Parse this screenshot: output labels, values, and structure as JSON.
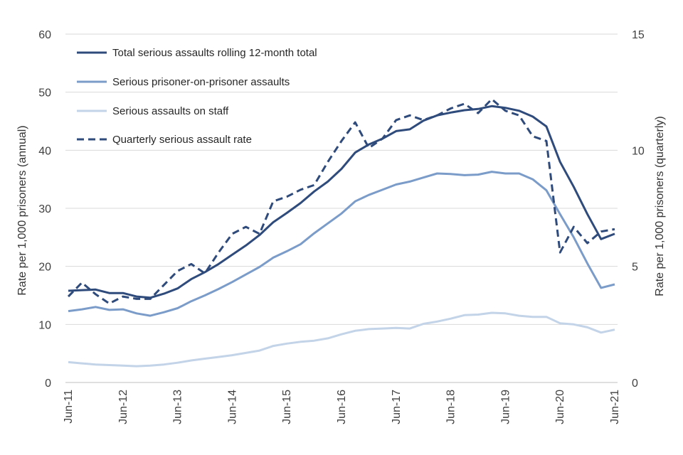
{
  "chart_data": {
    "type": "line",
    "ylabel_left": "Rate per 1,000 prisoners (annual)",
    "ylabel_right": "Rate per 1,000 prisoners (quarterly)",
    "ylim_left": [
      0,
      60
    ],
    "ylim_right": [
      0,
      15
    ],
    "yticks_left": [
      "0",
      "10",
      "20",
      "30",
      "40",
      "50",
      "60"
    ],
    "yticks_right": [
      "0",
      "5",
      "10",
      "15"
    ],
    "x": [
      "Jun-11",
      "Sep-11",
      "Dec-11",
      "Mar-12",
      "Jun-12",
      "Sep-12",
      "Dec-12",
      "Mar-13",
      "Jun-13",
      "Sep-13",
      "Dec-13",
      "Mar-14",
      "Jun-14",
      "Sep-14",
      "Dec-14",
      "Mar-15",
      "Jun-15",
      "Sep-15",
      "Dec-15",
      "Mar-16",
      "Jun-16",
      "Sep-16",
      "Dec-16",
      "Mar-17",
      "Jun-17",
      "Sep-17",
      "Dec-17",
      "Mar-18",
      "Jun-18",
      "Sep-18",
      "Dec-18",
      "Mar-19",
      "Jun-19",
      "Sep-19",
      "Dec-19",
      "Mar-20",
      "Jun-20",
      "Sep-20",
      "Dec-20",
      "Mar-21",
      "Jun-21"
    ],
    "xtick_labels": [
      "Jun-11",
      "Jun-12",
      "Jun-13",
      "Jun-14",
      "Jun-15",
      "Jun-16",
      "Jun-17",
      "Jun-18",
      "Jun-19",
      "Jun-20",
      "Jun-21"
    ],
    "grid": true,
    "legend_position": "top-left",
    "series": [
      {
        "name": "Total serious assaults rolling 12-month total",
        "axis": "left",
        "color": "#2f4b7c",
        "dash": false,
        "values": [
          15.8,
          15.9,
          16.0,
          15.4,
          15.4,
          14.8,
          14.6,
          15.3,
          16.2,
          17.8,
          19.0,
          20.4,
          22.0,
          23.6,
          25.4,
          27.6,
          29.2,
          30.9,
          32.9,
          34.6,
          36.8,
          39.6,
          41.0,
          42.0,
          43.3,
          43.6,
          45.1,
          46.0,
          46.5,
          46.9,
          47.1,
          47.6,
          47.3,
          46.8,
          45.8,
          44.1,
          38.0,
          33.7,
          29.0,
          24.7,
          25.6
        ]
      },
      {
        "name": "Serious prisoner-on-prisoner assaults",
        "axis": "left",
        "color": "#7b9cc9",
        "dash": false,
        "values": [
          12.3,
          12.6,
          13.0,
          12.5,
          12.6,
          11.9,
          11.5,
          12.1,
          12.8,
          14.0,
          15.0,
          16.1,
          17.3,
          18.6,
          19.9,
          21.5,
          22.6,
          23.8,
          25.7,
          27.4,
          29.1,
          31.2,
          32.3,
          33.2,
          34.1,
          34.6,
          35.3,
          36.0,
          35.9,
          35.7,
          35.8,
          36.3,
          36.0,
          36.0,
          35.0,
          33.1,
          29.0,
          25.0,
          20.5,
          16.3,
          16.9
        ]
      },
      {
        "name": "Serious assaults on staff",
        "axis": "left",
        "color": "#c3d3e8",
        "dash": false,
        "values": [
          3.5,
          3.3,
          3.1,
          3.0,
          2.9,
          2.8,
          2.9,
          3.1,
          3.4,
          3.8,
          4.1,
          4.4,
          4.7,
          5.1,
          5.5,
          6.3,
          6.7,
          7.0,
          7.2,
          7.6,
          8.3,
          8.9,
          9.2,
          9.3,
          9.4,
          9.3,
          10.1,
          10.5,
          11.0,
          11.6,
          11.7,
          12.0,
          11.9,
          11.5,
          11.3,
          11.3,
          10.2,
          10.0,
          9.5,
          8.6,
          9.1
        ]
      },
      {
        "name": "Quarterly serious assault rate",
        "axis": "right",
        "color": "#2f4b7c",
        "dash": true,
        "values": [
          3.7,
          4.3,
          3.8,
          3.4,
          3.7,
          3.6,
          3.6,
          4.2,
          4.8,
          5.1,
          4.7,
          5.6,
          6.4,
          6.7,
          6.4,
          7.8,
          8.0,
          8.3,
          8.5,
          9.5,
          10.4,
          11.2,
          10.1,
          10.5,
          11.3,
          11.5,
          11.3,
          11.5,
          11.8,
          12.0,
          11.6,
          12.2,
          11.7,
          11.5,
          10.6,
          10.4,
          5.6,
          6.7,
          6.0,
          6.5,
          6.6
        ]
      }
    ]
  }
}
